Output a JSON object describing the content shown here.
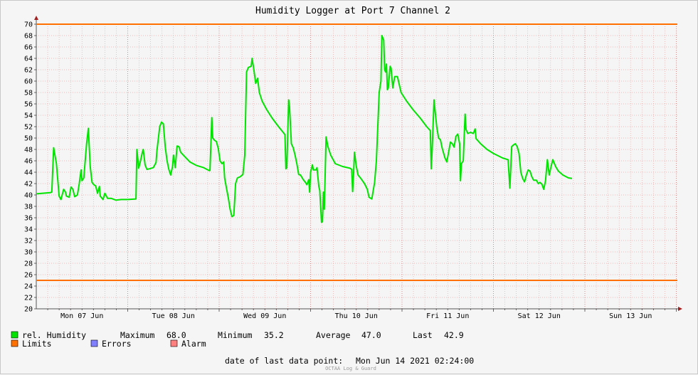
{
  "chart_data": {
    "type": "line",
    "title": "Humidity Logger at Port 7 Channel 2",
    "ylim": [
      20,
      70
    ],
    "y_step": 2,
    "grid": true,
    "x_labels": [
      "Mon 07 Jun",
      "Tue 08 Jun",
      "Wed 09 Jun",
      "Thu 10 Jun",
      "Fri 11 Jun",
      "Sat 12 Jun",
      "Sun 13 Jun"
    ],
    "x_range_days": [
      0,
      7.1
    ],
    "series": [
      {
        "name": "rel. Humidity",
        "color": "#00e400",
        "points": [
          [
            0.0,
            40.2
          ],
          [
            0.15,
            40.4
          ],
          [
            0.17,
            40.5
          ],
          [
            0.19,
            48.3
          ],
          [
            0.22,
            45.5
          ],
          [
            0.25,
            39.8
          ],
          [
            0.27,
            39.2
          ],
          [
            0.3,
            41.0
          ],
          [
            0.32,
            40.5
          ],
          [
            0.33,
            39.8
          ],
          [
            0.36,
            39.6
          ],
          [
            0.38,
            41.4
          ],
          [
            0.4,
            41.0
          ],
          [
            0.42,
            39.7
          ],
          [
            0.45,
            40.0
          ],
          [
            0.47,
            42.0
          ],
          [
            0.49,
            44.4
          ],
          [
            0.5,
            42.5
          ],
          [
            0.52,
            43.0
          ],
          [
            0.55,
            49.0
          ],
          [
            0.57,
            51.7
          ],
          [
            0.59,
            45.0
          ],
          [
            0.61,
            42.2
          ],
          [
            0.63,
            41.8
          ],
          [
            0.65,
            41.6
          ],
          [
            0.67,
            40.3
          ],
          [
            0.69,
            41.5
          ],
          [
            0.7,
            39.8
          ],
          [
            0.73,
            39.2
          ],
          [
            0.75,
            40.3
          ],
          [
            0.78,
            39.4
          ],
          [
            0.82,
            39.4
          ],
          [
            0.87,
            39.1
          ],
          [
            0.93,
            39.2
          ],
          [
            1.0,
            39.2
          ],
          [
            1.09,
            39.3
          ],
          [
            1.1,
            48.0
          ],
          [
            1.12,
            44.7
          ],
          [
            1.14,
            46.0
          ],
          [
            1.16,
            47.5
          ],
          [
            1.17,
            48.0
          ],
          [
            1.19,
            45.3
          ],
          [
            1.21,
            44.5
          ],
          [
            1.24,
            44.6
          ],
          [
            1.28,
            44.8
          ],
          [
            1.31,
            45.7
          ],
          [
            1.32,
            47.8
          ],
          [
            1.35,
            52.0
          ],
          [
            1.37,
            52.8
          ],
          [
            1.39,
            52.5
          ],
          [
            1.41,
            48.5
          ],
          [
            1.43,
            46.0
          ],
          [
            1.45,
            44.5
          ],
          [
            1.47,
            43.5
          ],
          [
            1.49,
            45.0
          ],
          [
            1.5,
            47.0
          ],
          [
            1.52,
            44.8
          ],
          [
            1.54,
            48.6
          ],
          [
            1.56,
            48.5
          ],
          [
            1.58,
            47.5
          ],
          [
            1.62,
            46.8
          ],
          [
            1.68,
            45.8
          ],
          [
            1.75,
            45.2
          ],
          [
            1.83,
            44.8
          ],
          [
            1.89,
            44.3
          ],
          [
            1.9,
            44.3
          ],
          [
            1.92,
            53.6
          ],
          [
            1.93,
            50.0
          ],
          [
            1.95,
            49.6
          ],
          [
            1.97,
            49.4
          ],
          [
            1.99,
            48.2
          ],
          [
            2.01,
            46.0
          ],
          [
            2.03,
            45.5
          ],
          [
            2.05,
            45.8
          ],
          [
            2.06,
            43.0
          ],
          [
            2.08,
            41.2
          ],
          [
            2.1,
            39.5
          ],
          [
            2.12,
            37.5
          ],
          [
            2.14,
            36.2
          ],
          [
            2.16,
            36.4
          ],
          [
            2.17,
            39.0
          ],
          [
            2.18,
            42.0
          ],
          [
            2.2,
            43.0
          ],
          [
            2.23,
            43.2
          ],
          [
            2.26,
            43.6
          ],
          [
            2.28,
            47.0
          ],
          [
            2.3,
            61.6
          ],
          [
            2.32,
            62.4
          ],
          [
            2.35,
            62.6
          ],
          [
            2.36,
            64.0
          ],
          [
            2.38,
            62.0
          ],
          [
            2.4,
            59.6
          ],
          [
            2.42,
            60.5
          ],
          [
            2.44,
            58.0
          ],
          [
            2.47,
            56.5
          ],
          [
            2.52,
            55.0
          ],
          [
            2.58,
            53.5
          ],
          [
            2.65,
            52.0
          ],
          [
            2.7,
            51.0
          ],
          [
            2.72,
            50.6
          ],
          [
            2.73,
            44.6
          ],
          [
            2.74,
            44.8
          ],
          [
            2.76,
            56.7
          ],
          [
            2.77,
            55.5
          ],
          [
            2.79,
            49.0
          ],
          [
            2.81,
            48.3
          ],
          [
            2.83,
            47.0
          ],
          [
            2.85,
            45.5
          ],
          [
            2.87,
            43.6
          ],
          [
            2.89,
            43.5
          ],
          [
            2.92,
            42.7
          ],
          [
            2.94,
            42.3
          ],
          [
            2.96,
            41.8
          ],
          [
            2.98,
            42.7
          ],
          [
            2.99,
            40.5
          ],
          [
            3.0,
            44.0
          ],
          [
            3.02,
            45.3
          ],
          [
            3.03,
            44.4
          ],
          [
            3.06,
            44.4
          ],
          [
            3.07,
            44.8
          ],
          [
            3.09,
            41.5
          ],
          [
            3.1,
            40.8
          ],
          [
            3.12,
            35.2
          ],
          [
            3.13,
            35.3
          ],
          [
            3.14,
            40.5
          ],
          [
            3.15,
            37.5
          ],
          [
            3.17,
            50.2
          ],
          [
            3.19,
            48.5
          ],
          [
            3.22,
            47.0
          ],
          [
            3.27,
            45.5
          ],
          [
            3.35,
            45.0
          ],
          [
            3.43,
            44.7
          ],
          [
            3.45,
            44.5
          ],
          [
            3.46,
            40.6
          ],
          [
            3.47,
            43.6
          ],
          [
            3.48,
            47.5
          ],
          [
            3.5,
            45.0
          ],
          [
            3.52,
            43.5
          ],
          [
            3.55,
            42.9
          ],
          [
            3.59,
            42.0
          ],
          [
            3.62,
            41.0
          ],
          [
            3.64,
            39.6
          ],
          [
            3.67,
            39.3
          ],
          [
            3.68,
            40.3
          ],
          [
            3.7,
            42.2
          ],
          [
            3.72,
            46.0
          ],
          [
            3.75,
            58.0
          ],
          [
            3.77,
            60.0
          ],
          [
            3.78,
            68.0
          ],
          [
            3.8,
            67.2
          ],
          [
            3.81,
            62.0
          ],
          [
            3.82,
            61.6
          ],
          [
            3.83,
            63.0
          ],
          [
            3.84,
            58.5
          ],
          [
            3.85,
            58.8
          ],
          [
            3.87,
            62.6
          ],
          [
            3.88,
            62.3
          ],
          [
            3.9,
            58.8
          ],
          [
            3.92,
            60.8
          ],
          [
            3.95,
            60.8
          ],
          [
            3.99,
            58.0
          ],
          [
            4.05,
            56.5
          ],
          [
            4.12,
            55.0
          ],
          [
            4.2,
            53.5
          ],
          [
            4.27,
            52.0
          ],
          [
            4.31,
            51.3
          ],
          [
            4.32,
            44.6
          ],
          [
            4.33,
            48.0
          ],
          [
            4.35,
            56.7
          ],
          [
            4.36,
            55.0
          ],
          [
            4.38,
            52.0
          ],
          [
            4.4,
            50.0
          ],
          [
            4.42,
            49.7
          ],
          [
            4.44,
            48.2
          ],
          [
            4.47,
            46.5
          ],
          [
            4.49,
            45.8
          ],
          [
            4.51,
            47.5
          ],
          [
            4.53,
            49.3
          ],
          [
            4.55,
            49.0
          ],
          [
            4.57,
            48.4
          ],
          [
            4.59,
            50.3
          ],
          [
            4.61,
            50.7
          ],
          [
            4.63,
            49.0
          ],
          [
            4.64,
            42.5
          ],
          [
            4.65,
            45.5
          ],
          [
            4.67,
            46.0
          ],
          [
            4.68,
            50.3
          ],
          [
            4.69,
            54.2
          ],
          [
            4.7,
            51.5
          ],
          [
            4.72,
            50.8
          ],
          [
            4.75,
            51.0
          ],
          [
            4.78,
            50.8
          ],
          [
            4.8,
            51.6
          ],
          [
            4.81,
            49.9
          ],
          [
            4.86,
            49.0
          ],
          [
            4.93,
            48.0
          ],
          [
            5.0,
            47.3
          ],
          [
            5.1,
            46.5
          ],
          [
            5.16,
            46.2
          ],
          [
            5.18,
            41.2
          ],
          [
            5.2,
            48.5
          ],
          [
            5.22,
            48.8
          ],
          [
            5.24,
            49.0
          ],
          [
            5.26,
            48.5
          ],
          [
            5.28,
            47.3
          ],
          [
            5.3,
            44.0
          ],
          [
            5.32,
            42.9
          ],
          [
            5.34,
            42.3
          ],
          [
            5.36,
            43.5
          ],
          [
            5.38,
            44.4
          ],
          [
            5.4,
            44.2
          ],
          [
            5.42,
            43.2
          ],
          [
            5.44,
            42.6
          ],
          [
            5.47,
            42.6
          ],
          [
            5.49,
            42.0
          ],
          [
            5.51,
            42.2
          ],
          [
            5.53,
            41.9
          ],
          [
            5.55,
            41.0
          ],
          [
            5.57,
            42.5
          ],
          [
            5.59,
            46.2
          ],
          [
            5.61,
            43.5
          ],
          [
            5.63,
            45.0
          ],
          [
            5.65,
            46.2
          ],
          [
            5.68,
            45.0
          ],
          [
            5.71,
            44.2
          ],
          [
            5.76,
            43.5
          ],
          [
            5.82,
            43.0
          ],
          [
            5.86,
            42.9
          ]
        ]
      },
      {
        "name": "Limits",
        "color": "#ff7000",
        "values": [
          70,
          25
        ]
      }
    ],
    "legend": {
      "humidity_label": "rel. Humidity",
      "maximum_label": "Maximum",
      "maximum_value": "68.0",
      "minimum_label": "Minimum",
      "minimum_value": "35.2",
      "average_label": "Average",
      "average_value": "47.0",
      "last_label": "Last",
      "last_value": "42.9",
      "limits_label": "Limits",
      "errors_label": "Errors",
      "alarm_label": "Alarm",
      "colors": {
        "humidity": "#00e400",
        "limits": "#ff7000",
        "errors": "#7f7fff",
        "alarm": "#ff7f7f"
      }
    },
    "footer": {
      "last_point_label": "date of last data point:",
      "last_point_value": "Mon Jun 14 2021 02:24:00",
      "watermark": "OCTAA Log & Guard"
    }
  }
}
